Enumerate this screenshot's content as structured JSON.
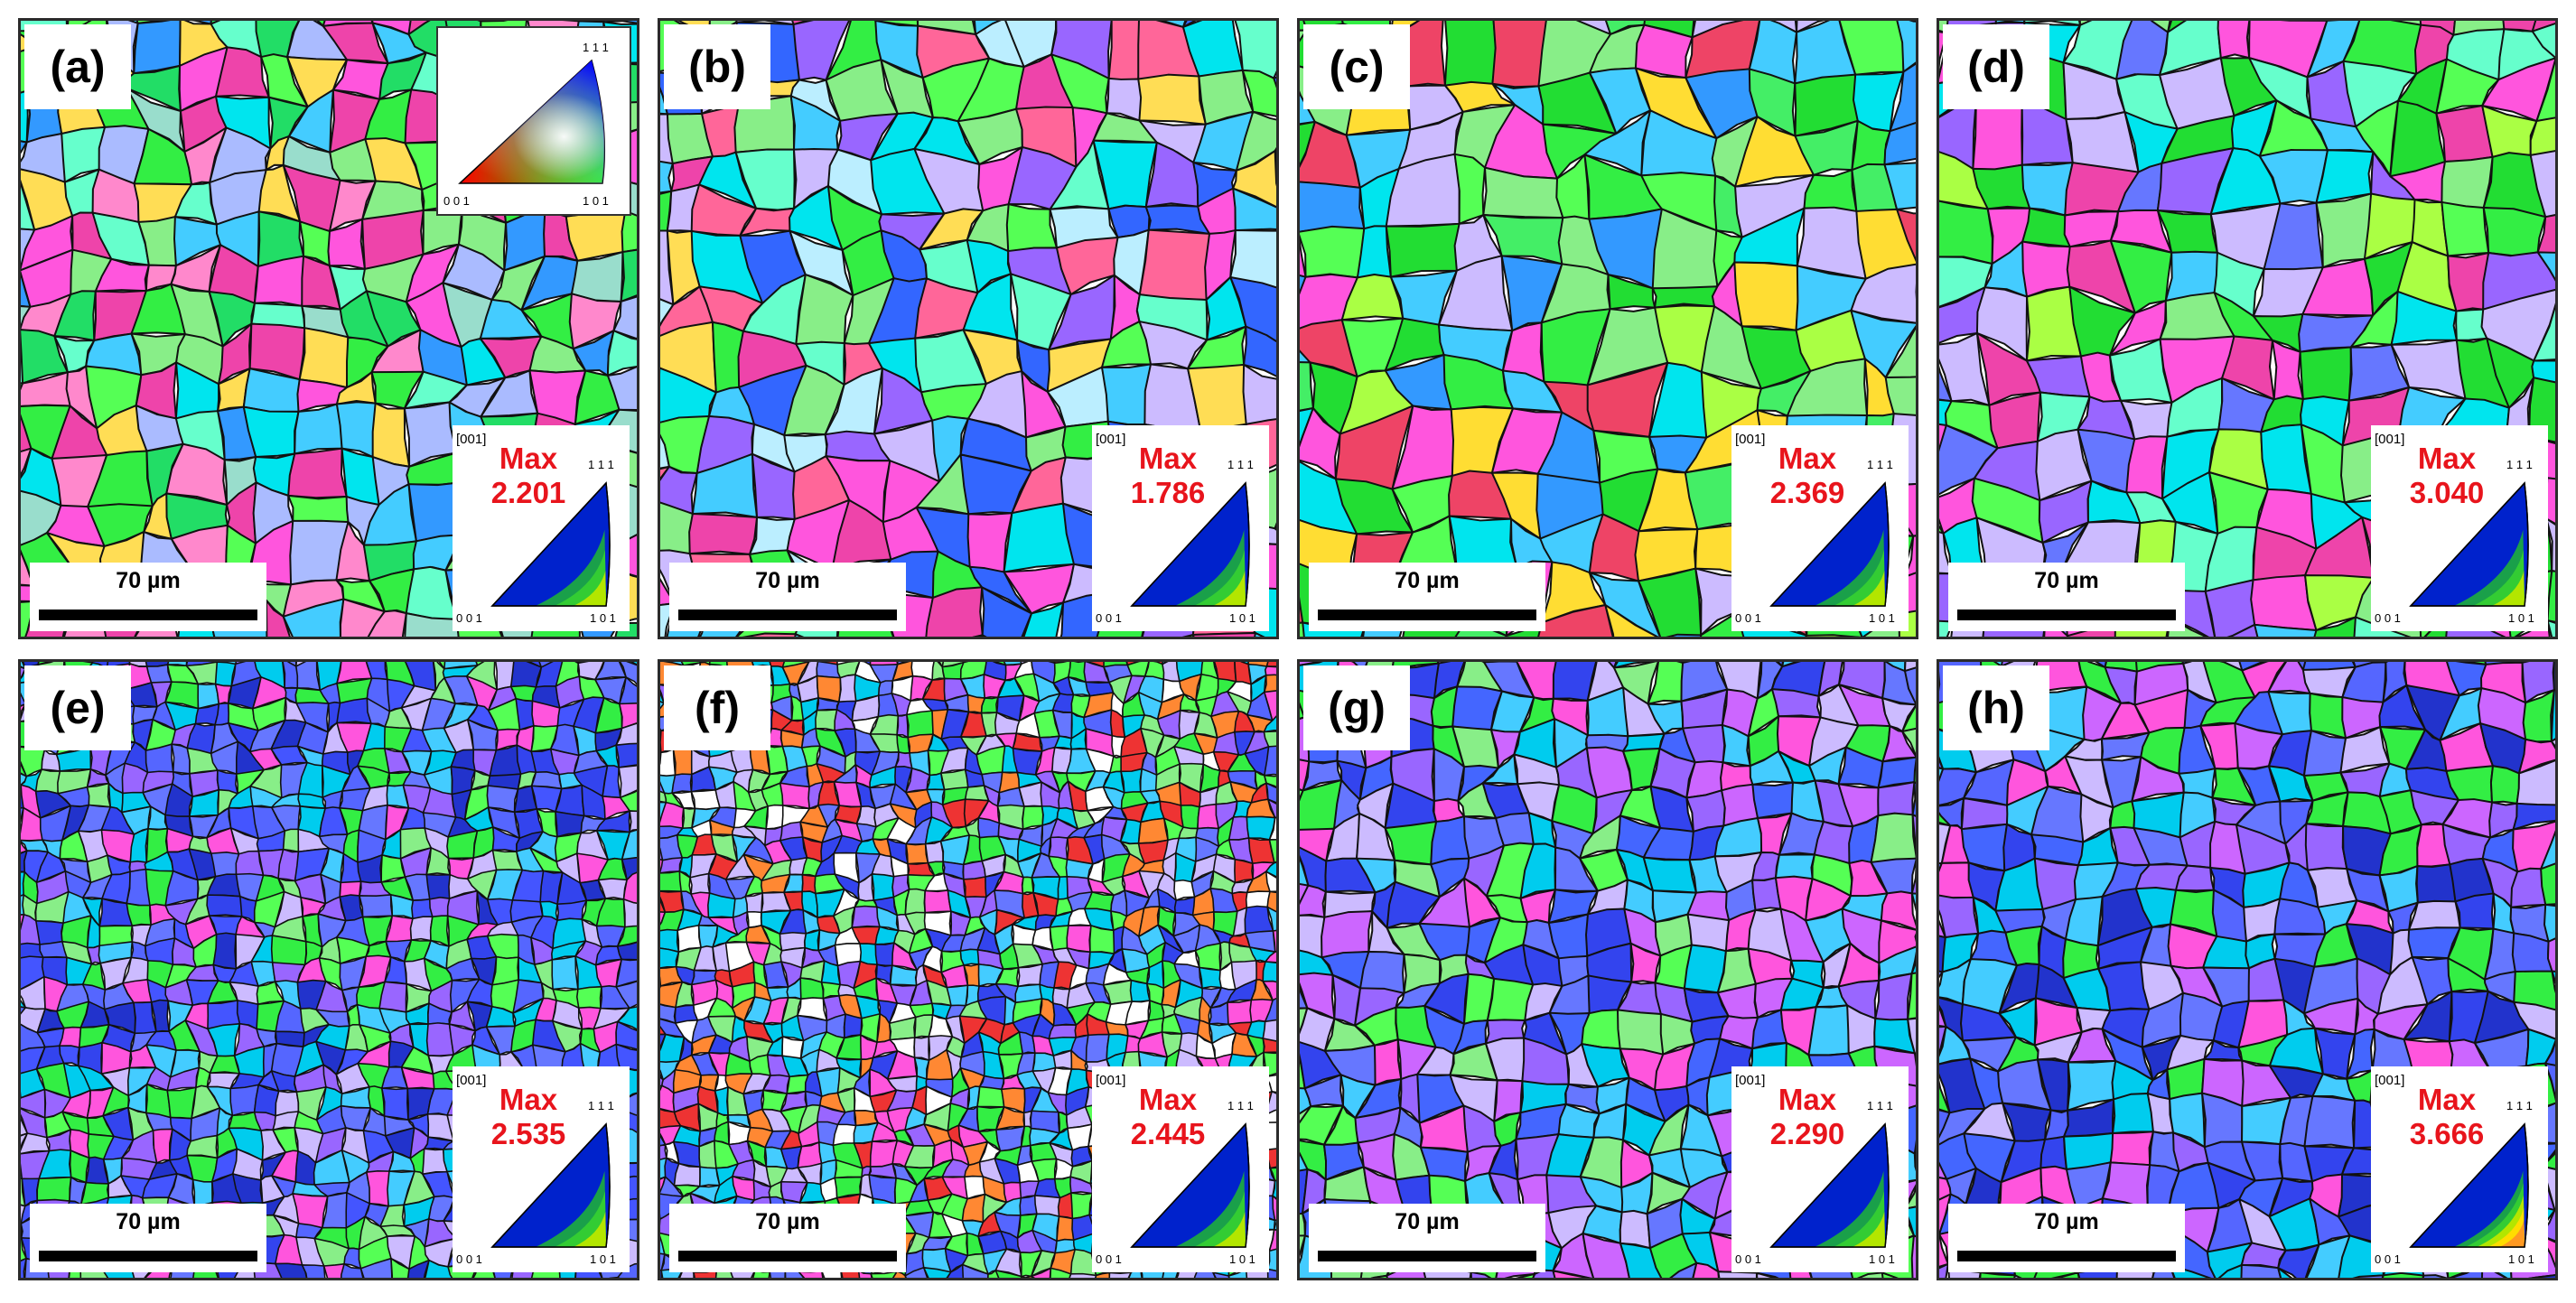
{
  "figure": {
    "panels": [
      {
        "letter": "(a)",
        "scale_bar": "70 µm",
        "ipf": {
          "direction": "[001]",
          "max_label": "Max",
          "max_value": "2.201",
          "corner_111": "1 1 1",
          "corner_001": "0 0 1",
          "corner_101": "1 0 1",
          "colors": [
            "#0022cc",
            "#1aa04a",
            "#33cc33",
            "#b3e600"
          ]
        },
        "map": {
          "seed": 11,
          "cell": 44,
          "palette": [
            "#33ee44",
            "#22dd66",
            "#55ff55",
            "#00e5ee",
            "#44ccff",
            "#3399ff",
            "#ff55dd",
            "#ee44aa",
            "#aabbff",
            "#99ddcc",
            "#ffdd55",
            "#88ee88",
            "#66ffcc",
            "#ff88cc"
          ]
        }
      },
      {
        "letter": "(b)",
        "scale_bar": "70 µm",
        "ipf": {
          "direction": "[001]",
          "max_label": "Max",
          "max_value": "1.786",
          "corner_111": "1 1 1",
          "corner_001": "0 0 1",
          "corner_101": "1 0 1",
          "colors": [
            "#0022cc",
            "#1aa04a",
            "#33cc33",
            "#b3e600"
          ]
        },
        "map": {
          "seed": 23,
          "cell": 50,
          "palette": [
            "#33ee44",
            "#55ff55",
            "#00e5ee",
            "#44ccff",
            "#3366ff",
            "#ff55dd",
            "#ee44aa",
            "#ccbbff",
            "#bbeeff",
            "#ffdd55",
            "#88ee88",
            "#ff6699",
            "#9966ff",
            "#66ffcc"
          ]
        }
      },
      {
        "letter": "(c)",
        "scale_bar": "70 µm",
        "ipf": {
          "direction": "[001]",
          "max_label": "Max",
          "max_value": "2.369",
          "corner_111": "1 1 1",
          "corner_001": "0 0 1",
          "corner_101": "1 0 1",
          "colors": [
            "#0022cc",
            "#1aa04a",
            "#33cc33",
            "#b3e600"
          ]
        },
        "map": {
          "seed": 37,
          "cell": 56,
          "palette": [
            "#33ee44",
            "#22dd33",
            "#55ff55",
            "#44ee66",
            "#00e5ee",
            "#44ccff",
            "#3399ff",
            "#ff55dd",
            "#ee4466",
            "#ccbbff",
            "#ffdd33",
            "#88ee88",
            "#aaff44"
          ]
        }
      },
      {
        "letter": "(d)",
        "scale_bar": "70 µm",
        "ipf": {
          "direction": "[001]",
          "max_label": "Max",
          "max_value": "3.040",
          "corner_111": "1 1 1",
          "corner_001": "0 0 1",
          "corner_101": "1 0 1",
          "colors": [
            "#0022cc",
            "#1aa04a",
            "#33cc33",
            "#b3e600"
          ]
        },
        "map": {
          "seed": 41,
          "cell": 52,
          "palette": [
            "#33ee44",
            "#22dd33",
            "#55ff55",
            "#00e5ee",
            "#44ccff",
            "#6677ff",
            "#9966ff",
            "#ff55dd",
            "#ee44aa",
            "#ccbbff",
            "#aaff44",
            "#88ee88",
            "#66ffcc"
          ]
        }
      },
      {
        "letter": "(e)",
        "scale_bar": "70 µm",
        "ipf": {
          "direction": "[001]",
          "max_label": "Max",
          "max_value": "2.535",
          "corner_111": "1 1 1",
          "corner_001": "0 0 1",
          "corner_101": "1 0 1",
          "colors": [
            "#0022cc",
            "#1aa04a",
            "#33cc33",
            "#b3e600"
          ]
        },
        "map": {
          "seed": 53,
          "cell": 24,
          "palette": [
            "#3344ee",
            "#4455ff",
            "#5566ff",
            "#2233cc",
            "#6677ff",
            "#00ccee",
            "#44ccff",
            "#33ee44",
            "#55ff55",
            "#9966ff",
            "#ff55dd",
            "#ccbbff",
            "#88ee88"
          ]
        }
      },
      {
        "letter": "(f)",
        "scale_bar": "70 µm",
        "ipf": {
          "direction": "[001]",
          "max_label": "Max",
          "max_value": "2.445",
          "corner_111": "1 1 1",
          "corner_001": "0 0 1",
          "corner_101": "1 0 1",
          "colors": [
            "#0022cc",
            "#1aa04a",
            "#33cc33",
            "#b3e600"
          ]
        },
        "map": {
          "seed": 67,
          "cell": 20,
          "palette": [
            "#3344ee",
            "#5566ff",
            "#6677ff",
            "#00ccee",
            "#44ccff",
            "#33ee44",
            "#55ff55",
            "#9966ff",
            "#ff55dd",
            "#ccbbff",
            "#ff8833",
            "#ffffff",
            "#ee3333",
            "#88ee88"
          ]
        }
      },
      {
        "letter": "(g)",
        "scale_bar": "70 µm",
        "ipf": {
          "direction": "[001]",
          "max_label": "Max",
          "max_value": "2.290",
          "corner_111": "1 1 1",
          "corner_001": "0 0 1",
          "corner_101": "1 0 1",
          "colors": [
            "#0022cc",
            "#1aa04a",
            "#33cc33",
            "#b3e600"
          ]
        },
        "map": {
          "seed": 71,
          "cell": 36,
          "palette": [
            "#3344ee",
            "#4466ff",
            "#6677ff",
            "#9966ff",
            "#00ccee",
            "#44ccff",
            "#33ee44",
            "#55ff55",
            "#ff55dd",
            "#cc66ff",
            "#ccbbff",
            "#88ee88"
          ]
        }
      },
      {
        "letter": "(h)",
        "scale_bar": "70 µm",
        "ipf": {
          "direction": "[001]",
          "max_label": "Max",
          "max_value": "3.666",
          "corner_111": "1 1 1",
          "corner_001": "0 0 1",
          "corner_101": "1 0 1",
          "colors": [
            "#0022cc",
            "#1aa04a",
            "#33cc33",
            "#b3e600",
            "#ffdd00",
            "#ff9922"
          ]
        },
        "map": {
          "seed": 89,
          "cell": 38,
          "palette": [
            "#3344ee",
            "#4466ff",
            "#5566ff",
            "#6677ff",
            "#2233cc",
            "#00ccee",
            "#44ccff",
            "#33ee44",
            "#9966ff",
            "#ff55dd",
            "#cc66ff",
            "#ccbbff"
          ]
        }
      }
    ],
    "color_key": {
      "corner_111": "1 1 1",
      "corner_001": "0 0 1",
      "corner_101": "1 0 1"
    }
  }
}
